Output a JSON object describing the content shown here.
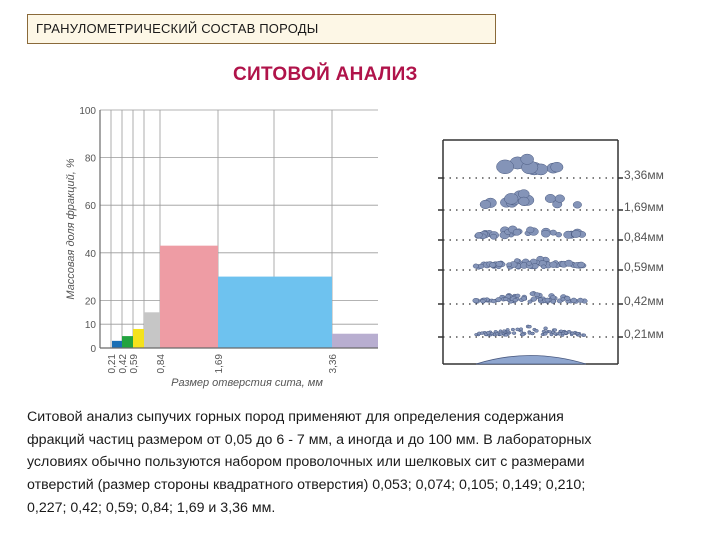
{
  "header": {
    "title": "ГРАНУЛОМЕТРИЧЕСКИЙ СОСТАВ ПОРОДЫ"
  },
  "subtitle": "СИТОВОЙ АНАЛИЗ",
  "chart_data": {
    "type": "bar",
    "ylabel": "Массовая доля фракций, %",
    "xlabel": "Размер отверстия сита, мм",
    "ylim": [
      0,
      100
    ],
    "yticks": [
      0,
      10,
      20,
      40,
      60,
      80,
      100
    ],
    "xticks": [
      "0,21",
      "0,42",
      "0,59",
      "0,84",
      "1,69",
      "3,36"
    ],
    "grid": true,
    "bars": [
      {
        "from": "0",
        "to": "0,21",
        "value": 3,
        "color": "#1a6fb5"
      },
      {
        "from": "0,21",
        "to": "0,42",
        "value": 5,
        "color": "#22a33f"
      },
      {
        "from": "0,42",
        "to": "0,59",
        "value": 8,
        "color": "#f4e21c"
      },
      {
        "from": "0,59",
        "to": "0,84",
        "value": 15,
        "color": "#c6c6c6"
      },
      {
        "from": "0,84",
        "to": "1,69",
        "value": 43,
        "color": "#ee9ca4"
      },
      {
        "from": "1,69",
        "to": "3,36",
        "value": 30,
        "color": "#6ec2ef"
      },
      {
        "from": "3,36",
        "to": "",
        "value": 6,
        "color": "#b8aed0"
      }
    ]
  },
  "sieve": {
    "labels": [
      "3,36мм",
      "1,69мм",
      "0,84мм",
      "0,59мм",
      "0,42мм",
      "0,21мм"
    ]
  },
  "description": {
    "lines": [
      "Ситовой анализ сыпучих горных пород применяют для определения содержания",
      "фракций частиц размером от 0,05 до 6 - 7 мм, а иногда и до 100 мм. В лабораторных",
      "условиях обычно пользуются набором проволочных или шелковых сит с размерами",
      "отверстий (размер стороны квадратного отверстия) 0,053; 0,074; 0,105; 0,149; 0,210;",
      "0,227; 0,42; 0,59; 0,84; 1,69 и 3,36 мм."
    ]
  }
}
